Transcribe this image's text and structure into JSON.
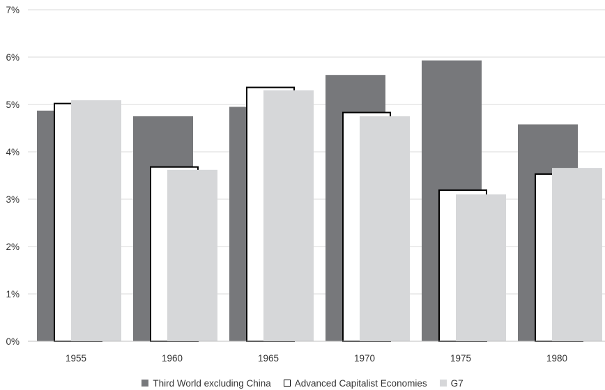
{
  "chart_data": {
    "type": "bar",
    "title": "",
    "xlabel": "",
    "ylabel": "",
    "ylim": [
      0,
      7
    ],
    "y_ticks": [
      "0%",
      "1%",
      "2%",
      "3%",
      "4%",
      "5%",
      "6%",
      "7%"
    ],
    "grid": "horizontal",
    "legend_placement": "bottom",
    "categories": [
      "1955",
      "1960",
      "1965",
      "1970",
      "1975",
      "1980"
    ],
    "series": [
      {
        "name": "Third World excluding China",
        "values": [
          4.87,
          4.75,
          4.95,
          5.62,
          5.93,
          4.58
        ],
        "color": "#77787b",
        "style": "filled"
      },
      {
        "name": "Advanced Capitalist Economies",
        "values": [
          5.02,
          3.68,
          5.36,
          4.83,
          3.19,
          3.53
        ],
        "color": "#ffffff",
        "style": "outlined"
      },
      {
        "name": "G7",
        "values": [
          5.09,
          3.62,
          5.3,
          4.75,
          3.1,
          3.66
        ],
        "color": "#d6d7d9",
        "style": "filled"
      }
    ]
  },
  "colors": {
    "grid": "#d9d9d9",
    "axis": "#bfbfbf",
    "outline": "#000000",
    "text": "#333333"
  }
}
